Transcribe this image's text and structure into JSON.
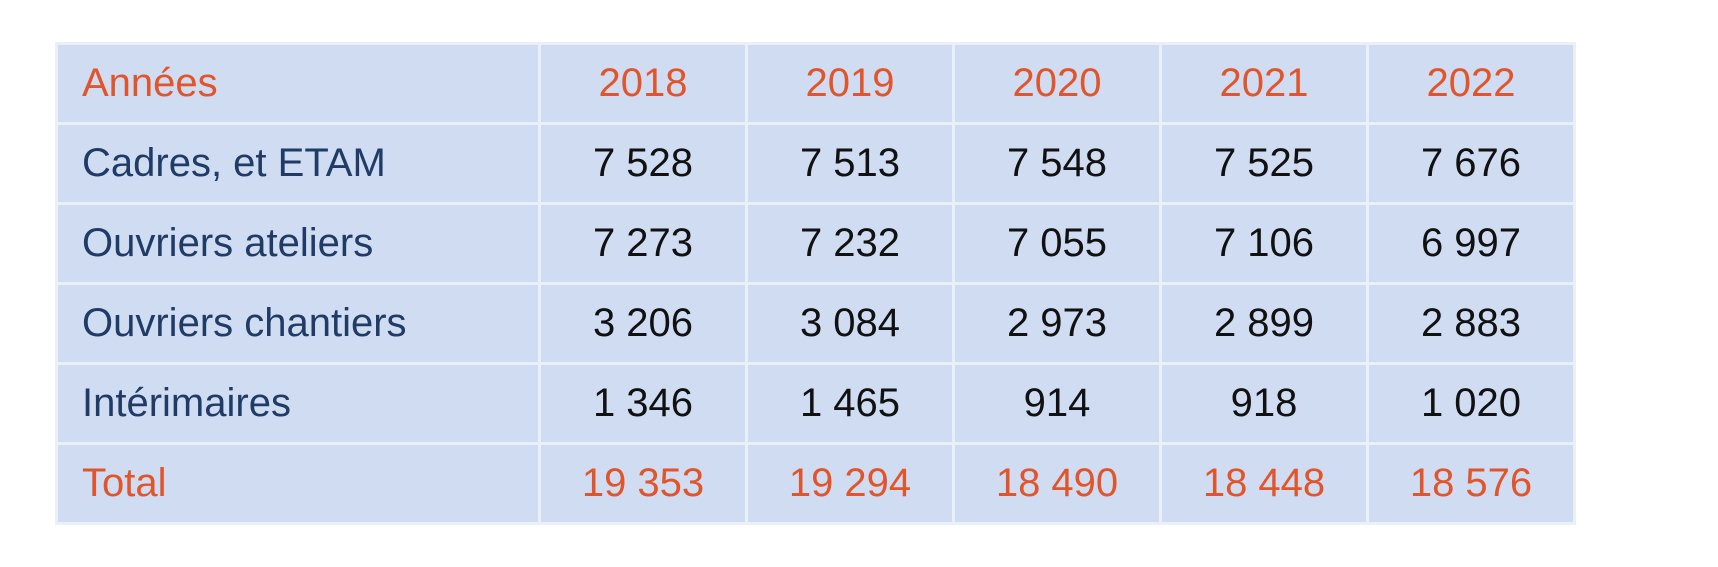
{
  "table": {
    "header": [
      "Années",
      "2018",
      "2019",
      "2020",
      "2021",
      "2022"
    ],
    "rows": [
      [
        "Cadres, et ETAM",
        "7 528",
        "7 513",
        "7 548",
        "7 525",
        "7 676"
      ],
      [
        "Ouvriers ateliers",
        "7 273",
        "7 232",
        "7 055",
        "7 106",
        "6 997"
      ],
      [
        "Ouvriers chantiers",
        "3 206",
        "3 084",
        "2 973",
        "2 899",
        "2 883"
      ],
      [
        "Intérimaires",
        "1 346",
        "1 465",
        "914",
        "918",
        "1 020"
      ]
    ],
    "total": [
      "Total",
      "19 353",
      "19 294",
      "18 490",
      "18 448",
      "18 576"
    ]
  }
}
